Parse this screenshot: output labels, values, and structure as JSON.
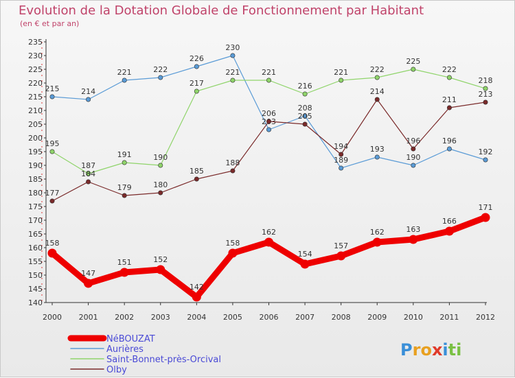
{
  "header": {
    "title": "Evolution de la Dotation Globale de Fonctionnement par Habitant",
    "subtitle": "(en € et par an)"
  },
  "logo": {
    "text": "Proxiti"
  },
  "chart_data": {
    "type": "line",
    "title": "Evolution de la Dotation Globale de Fonctionnement par Habitant",
    "subtitle": "(en € et par an)",
    "xlabel": "",
    "ylabel": "",
    "ylim": [
      140,
      235
    ],
    "ytick_step": 5,
    "grid": false,
    "legend_position": "bottom-left",
    "categories": [
      "2000",
      "2001",
      "2002",
      "2003",
      "2004",
      "2005",
      "2006",
      "2007",
      "2008",
      "2009",
      "2010",
      "2011",
      "2012"
    ],
    "series": [
      {
        "name": "NéBOUZAT",
        "color": "#ee0000",
        "values": [
          158,
          147,
          151,
          152,
          142,
          158,
          162,
          154,
          157,
          162,
          163,
          166,
          171
        ],
        "labels": [
          "158",
          "147",
          "151",
          "152",
          "142",
          "158",
          "162",
          "154",
          "157",
          "162",
          "163",
          "166",
          "171"
        ]
      },
      {
        "name": "Aurières",
        "color": "#5a9bd6",
        "values": [
          215,
          214,
          221,
          222,
          226,
          230,
          203,
          208,
          189,
          193,
          190,
          196,
          192
        ],
        "labels": [
          "215",
          "214",
          "221",
          "222",
          "226",
          "230",
          "203",
          "208",
          "189",
          "193",
          "190",
          "196",
          "192"
        ]
      },
      {
        "name": "Saint-Bonnet-près-Orcival",
        "color": "#8fd46a",
        "values": [
          195,
          187,
          191,
          190,
          217,
          221,
          221,
          216,
          221,
          222,
          225,
          222,
          218
        ],
        "labels": [
          "195",
          "187",
          "191",
          "190",
          "217",
          "221",
          "221",
          "216",
          "221",
          "222",
          "225",
          "222",
          "218"
        ]
      },
      {
        "name": "Olby",
        "color": "#7a2a2a",
        "values": [
          177,
          184,
          179,
          180,
          185,
          188,
          206,
          205,
          194,
          214,
          196,
          211,
          213
        ],
        "labels": [
          "177",
          "184",
          "179",
          "180",
          "185",
          "188",
          "206",
          "205",
          "194",
          "214",
          "196",
          "211",
          "213"
        ]
      }
    ]
  }
}
